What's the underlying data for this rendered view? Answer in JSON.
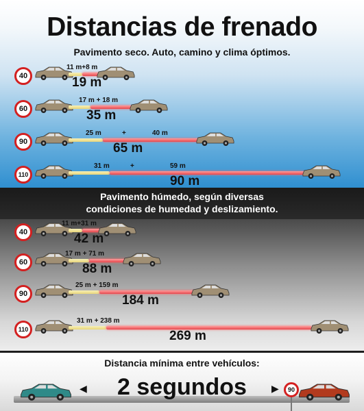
{
  "title": "Distancias de frenado",
  "dry": {
    "subtitle": "Pavimento seco. Auto, camino y clima óptimos.",
    "rows": [
      {
        "speed": "40",
        "reaction": "11 m",
        "plus": "+",
        "braking": "8 m",
        "total": "19 m",
        "label": "11 m+8 m"
      },
      {
        "speed": "60",
        "reaction": "17 m",
        "plus": "+",
        "braking": "18 m",
        "total": "35 m",
        "label": "17 m  +  18 m"
      },
      {
        "speed": "90",
        "reaction": "25 m",
        "plus": "+",
        "braking": "40 m",
        "total": "65 m"
      },
      {
        "speed": "110",
        "reaction": "31 m",
        "plus": "+",
        "braking": "59 m",
        "total": "90 m"
      }
    ]
  },
  "wet": {
    "text_line1": "Pavimento húmedo, según diversas",
    "text_line2": "condiciones de humedad y deslizamiento.",
    "rows": [
      {
        "speed": "40",
        "reaction": "11 m",
        "braking": "31 m",
        "total": "42 m",
        "label": "11 m+31 m"
      },
      {
        "speed": "60",
        "reaction": "17 m",
        "braking": "71 m",
        "total": "88 m",
        "label": "17 m  +  71 m"
      },
      {
        "speed": "90",
        "reaction": "25 m",
        "braking": "159 m",
        "total": "184 m",
        "label": "25 m +     159 m"
      },
      {
        "speed": "110",
        "reaction": "31 m",
        "braking": "238 m",
        "total": "269 m",
        "label": "31 m +  238 m"
      }
    ]
  },
  "footer": {
    "title": "Distancia mínima entre vehículos:",
    "big": "2 segundos",
    "left_arrow": "◀",
    "right_arrow": "▶",
    "sign": "90"
  },
  "colors": {
    "reaction_bar": "#e9d67a",
    "braking_bar": "#e5484d",
    "sign_ring": "#d32020",
    "car_body": "#a08f74",
    "footer_left_car": "#2f8a88",
    "footer_right_car": "#b23a1e"
  }
}
